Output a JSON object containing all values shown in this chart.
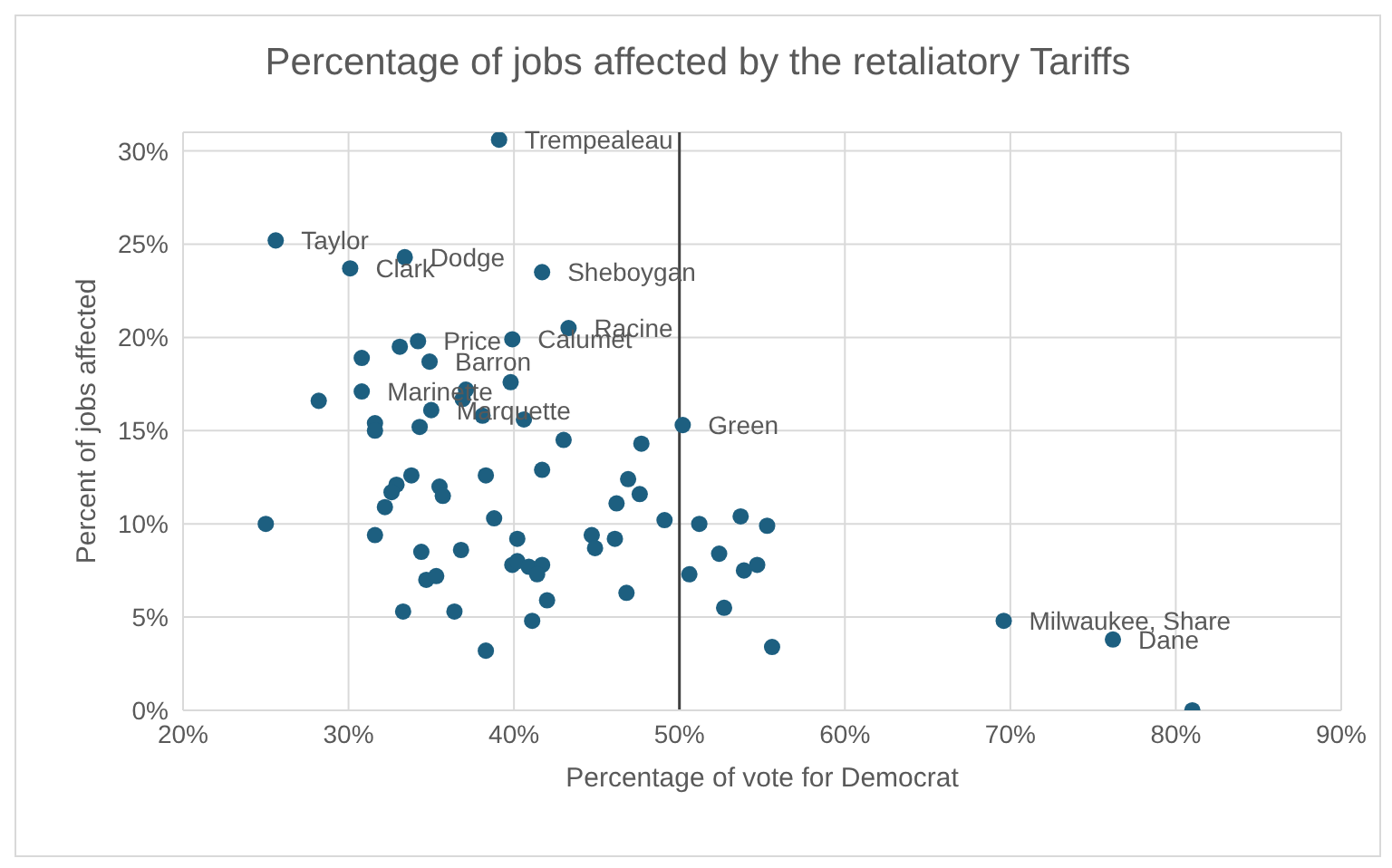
{
  "chart_data": {
    "type": "scatter",
    "title": "Percentage of jobs affected by the retaliatory Tariffs",
    "xlabel": "Percentage of vote for Democrat",
    "ylabel": "Percent of jobs affected",
    "series": [
      {
        "color": "#1d5f80",
        "x": [
          39.1,
          25.6,
          33.4,
          30.1,
          41.7,
          43.3,
          39.9,
          34.2,
          33.1,
          30.8,
          34.9,
          39.8,
          37.1,
          36.9,
          30.8,
          28.2,
          35.0,
          38.1,
          40.6,
          50.2,
          31.6,
          31.6,
          34.3,
          43.0,
          47.7,
          33.8,
          32.9,
          32.6,
          32.2,
          35.5,
          35.7,
          38.3,
          41.7,
          46.9,
          47.6,
          46.2,
          49.1,
          25.0,
          38.8,
          31.6,
          34.4,
          36.8,
          40.2,
          44.7,
          44.9,
          46.1,
          39.9,
          40.2,
          40.9,
          41.7,
          41.4,
          42.0,
          41.1,
          34.7,
          35.3,
          33.3,
          36.4,
          38.3,
          46.8,
          51.2,
          53.7,
          55.3,
          50.6,
          52.4,
          53.9,
          54.7,
          52.7,
          55.6,
          69.6,
          76.2,
          81.0
        ],
        "values": [
          30.6,
          25.2,
          24.3,
          23.7,
          23.5,
          20.5,
          19.9,
          19.8,
          19.5,
          18.9,
          18.7,
          17.6,
          17.2,
          16.7,
          17.1,
          16.6,
          16.1,
          15.8,
          15.6,
          15.3,
          15.4,
          15.0,
          15.2,
          14.5,
          14.3,
          12.6,
          12.1,
          11.7,
          10.9,
          12.0,
          11.5,
          12.6,
          12.9,
          12.4,
          11.6,
          11.1,
          10.2,
          10.0,
          10.3,
          9.4,
          8.5,
          8.6,
          9.2,
          9.4,
          8.7,
          9.2,
          7.8,
          8.0,
          7.7,
          7.8,
          7.3,
          5.9,
          4.8,
          7.0,
          7.2,
          5.3,
          5.3,
          3.2,
          6.3,
          10.0,
          10.4,
          9.9,
          7.3,
          8.4,
          7.5,
          7.8,
          5.5,
          3.4,
          4.8,
          3.8,
          0.0
        ]
      }
    ],
    "xlim": [
      20,
      90
    ],
    "xticks": [
      {
        "value": 20,
        "label": "20%"
      },
      {
        "value": 30,
        "label": "30%"
      },
      {
        "value": 40,
        "label": "40%"
      },
      {
        "value": 50,
        "label": "50%"
      },
      {
        "value": 60,
        "label": "60%"
      },
      {
        "value": 70,
        "label": "70%"
      },
      {
        "value": 80,
        "label": "80%"
      },
      {
        "value": 90,
        "label": "90%"
      }
    ],
    "ylim": [
      0,
      31
    ],
    "yticks": [
      {
        "value": 0,
        "label": "0%"
      },
      {
        "value": 5,
        "label": "5%"
      },
      {
        "value": 10,
        "label": "10%"
      },
      {
        "value": 15,
        "label": "15%"
      },
      {
        "value": 20,
        "label": "20%"
      },
      {
        "value": 25,
        "label": "25%"
      },
      {
        "value": 30,
        "label": "30%"
      }
    ],
    "grid": true,
    "marker": "circle",
    "ref_lines": [
      {
        "axis": "x",
        "value": 50,
        "color": "#404040"
      }
    ],
    "annotations": [
      {
        "text": "Trempealeau",
        "x": 39.1,
        "y": 30.6
      },
      {
        "text": "Taylor",
        "x": 25.6,
        "y": 25.2
      },
      {
        "text": "Dodge",
        "x": 33.4,
        "y": 24.3
      },
      {
        "text": "Clark",
        "x": 30.1,
        "y": 23.7
      },
      {
        "text": "Sheboygan",
        "x": 41.7,
        "y": 23.5
      },
      {
        "text": "Racine",
        "x": 43.3,
        "y": 20.5
      },
      {
        "text": "Calumet",
        "x": 39.9,
        "y": 19.9
      },
      {
        "text": "Price",
        "x": 34.2,
        "y": 19.8
      },
      {
        "text": "Barron",
        "x": 34.9,
        "y": 18.7
      },
      {
        "text": "Marinette",
        "x": 30.8,
        "y": 17.1
      },
      {
        "text": "Marquette",
        "x": 35.0,
        "y": 16.1
      },
      {
        "text": "Green",
        "x": 50.2,
        "y": 15.3
      },
      {
        "text": "Milwaukee, Share",
        "x": 69.6,
        "y": 4.8
      },
      {
        "text": "Dane",
        "x": 76.2,
        "y": 3.8
      }
    ]
  }
}
